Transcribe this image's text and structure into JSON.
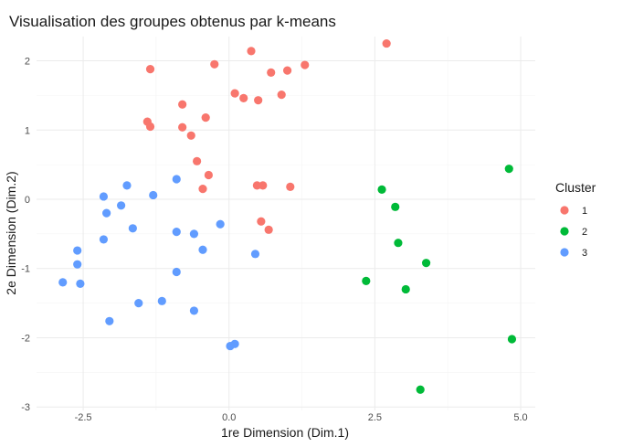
{
  "chart_data": {
    "type": "scatter",
    "title": "Visualisation des groupes obtenus par k-means",
    "xlabel": "1re Dimension (Dim.1)",
    "ylabel": "2e Dimension (Dim.2)",
    "xlim": [
      -3.3,
      5.25
    ],
    "ylim": [
      -3.05,
      2.35
    ],
    "x_ticks": [
      -2.5,
      0.0,
      2.5,
      5.0
    ],
    "x_tick_labels": [
      "-2.5",
      "0.0",
      "2.5",
      "5.0"
    ],
    "y_ticks": [
      -3,
      -2,
      -1,
      0,
      1,
      2
    ],
    "y_tick_labels": [
      "-3",
      "-2",
      "-1",
      "0",
      "1",
      "2"
    ],
    "grid": true,
    "legend": {
      "title": "Cluster",
      "placement": "right"
    },
    "series": [
      {
        "name": "1",
        "color": "#F8766D",
        "points": [
          [
            -1.35,
            1.88
          ],
          [
            -0.25,
            1.95
          ],
          [
            0.38,
            2.14
          ],
          [
            2.7,
            2.25
          ],
          [
            0.72,
            1.83
          ],
          [
            1.0,
            1.86
          ],
          [
            1.3,
            1.94
          ],
          [
            0.1,
            1.53
          ],
          [
            0.25,
            1.46
          ],
          [
            0.5,
            1.43
          ],
          [
            0.9,
            1.51
          ],
          [
            -0.8,
            1.37
          ],
          [
            -0.4,
            1.18
          ],
          [
            -1.4,
            1.12
          ],
          [
            -1.35,
            1.05
          ],
          [
            -0.8,
            1.04
          ],
          [
            -0.65,
            0.92
          ],
          [
            -0.55,
            0.55
          ],
          [
            -0.35,
            0.35
          ],
          [
            -0.45,
            0.15
          ],
          [
            0.48,
            0.2
          ],
          [
            0.58,
            0.2
          ],
          [
            1.05,
            0.18
          ],
          [
            0.55,
            -0.32
          ],
          [
            0.68,
            -0.44
          ]
        ]
      },
      {
        "name": "2",
        "color": "#00BA38",
        "points": [
          [
            4.8,
            0.44
          ],
          [
            2.62,
            0.14
          ],
          [
            2.85,
            -0.11
          ],
          [
            2.9,
            -0.63
          ],
          [
            3.38,
            -0.92
          ],
          [
            2.35,
            -1.18
          ],
          [
            3.03,
            -1.3
          ],
          [
            4.85,
            -2.02
          ],
          [
            3.28,
            -2.75
          ]
        ]
      },
      {
        "name": "3",
        "color": "#619CFF",
        "points": [
          [
            -0.9,
            0.29
          ],
          [
            -1.75,
            0.2
          ],
          [
            -2.15,
            0.04
          ],
          [
            -1.3,
            0.06
          ],
          [
            -1.85,
            -0.09
          ],
          [
            -2.1,
            -0.2
          ],
          [
            -0.15,
            -0.36
          ],
          [
            -1.65,
            -0.42
          ],
          [
            -0.9,
            -0.47
          ],
          [
            -0.6,
            -0.5
          ],
          [
            -2.15,
            -0.58
          ],
          [
            -2.6,
            -0.74
          ],
          [
            -0.45,
            -0.73
          ],
          [
            0.45,
            -0.79
          ],
          [
            -2.6,
            -0.94
          ],
          [
            -0.9,
            -1.05
          ],
          [
            -2.85,
            -1.2
          ],
          [
            -2.55,
            -1.22
          ],
          [
            -1.15,
            -1.47
          ],
          [
            -1.55,
            -1.5
          ],
          [
            -0.6,
            -1.61
          ],
          [
            -2.05,
            -1.76
          ],
          [
            0.1,
            -2.09
          ],
          [
            0.02,
            -2.12
          ]
        ]
      }
    ]
  }
}
